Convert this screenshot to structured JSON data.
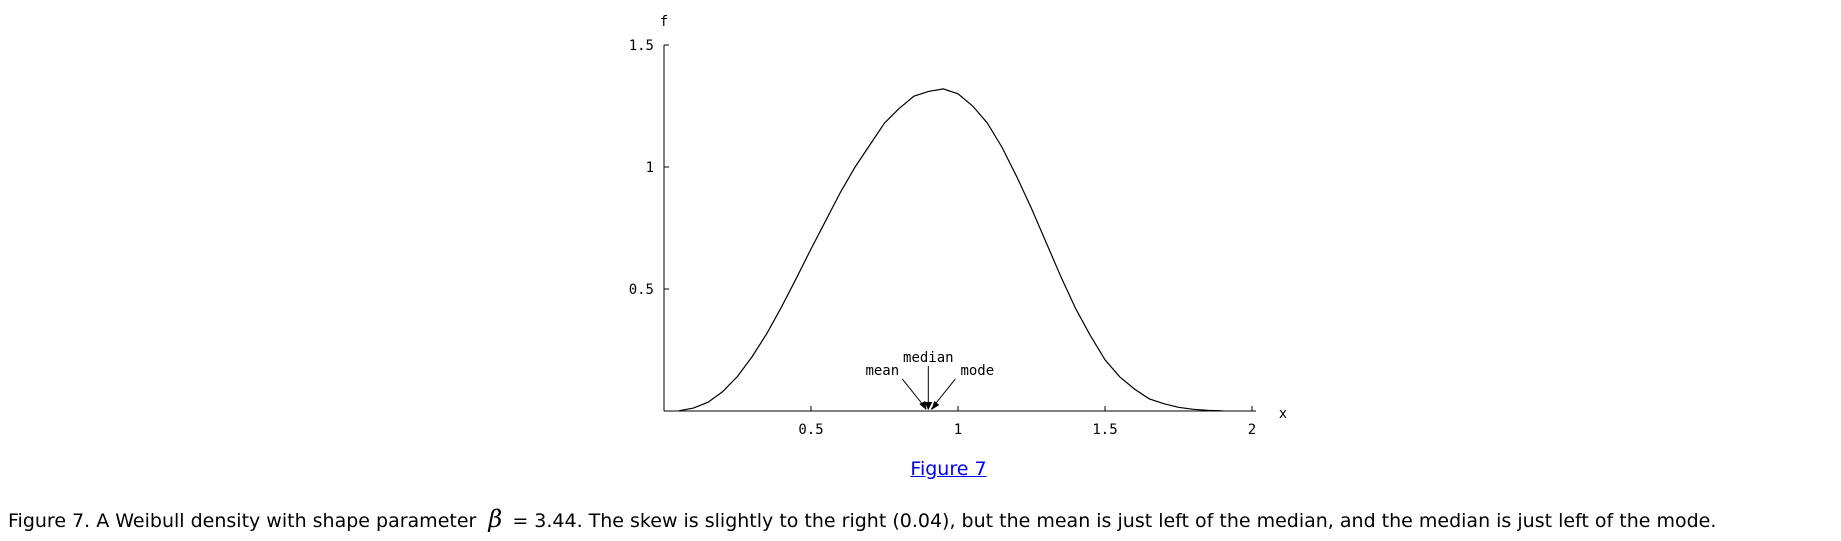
{
  "chart_data": {
    "type": "line",
    "title": "",
    "xlabel": "x",
    "ylabel": "f",
    "xlim": [
      0,
      2
    ],
    "ylim": [
      0,
      1.5
    ],
    "x_ticks": [
      0.5,
      1,
      1.5,
      2
    ],
    "x_tick_labels": [
      "0.5",
      "1",
      "1.5",
      "2"
    ],
    "y_ticks": [
      0.5,
      1,
      1.5
    ],
    "y_tick_labels": [
      "0.5",
      "1",
      "1.5"
    ],
    "grid": false,
    "distribution": "Weibull",
    "shape": 3.44,
    "scale": 1,
    "series": [
      {
        "x": [
          0.05,
          0.1,
          0.15,
          0.2,
          0.25,
          0.3,
          0.35,
          0.4,
          0.45,
          0.5,
          0.55,
          0.6,
          0.65,
          0.7,
          0.75,
          0.8,
          0.85,
          0.9,
          0.95,
          1.0,
          1.05,
          1.1,
          1.15,
          1.2,
          1.25,
          1.3,
          1.35,
          1.4,
          1.45,
          1.5,
          1.55,
          1.6,
          1.65,
          1.7,
          1.75,
          1.8,
          1.85,
          1.9
        ],
        "y": [
          0.001,
          0.012,
          0.036,
          0.08,
          0.142,
          0.223,
          0.318,
          0.427,
          0.544,
          0.664,
          0.78,
          0.896,
          1.0,
          1.09,
          1.18,
          1.24,
          1.29,
          1.31,
          1.32,
          1.3,
          1.25,
          1.18,
          1.08,
          0.96,
          0.83,
          0.69,
          0.55,
          0.42,
          0.31,
          0.21,
          0.14,
          0.09,
          0.05,
          0.03,
          0.015,
          0.007,
          0.003,
          0.001
        ]
      }
    ],
    "annotations": [
      {
        "label": "mean",
        "x": 0.899
      },
      {
        "label": "median",
        "x": 0.899
      },
      {
        "label": "mode",
        "x": 0.916
      }
    ]
  },
  "figure_link": "Figure 7",
  "caption": {
    "before": "Figure 7. A Weibull density with shape parameter",
    "beta_symbol": "β",
    "after": "= 3.44. The skew is slightly to the right (0.04), but the mean is just left of the median, and the median is just left of the mode."
  }
}
